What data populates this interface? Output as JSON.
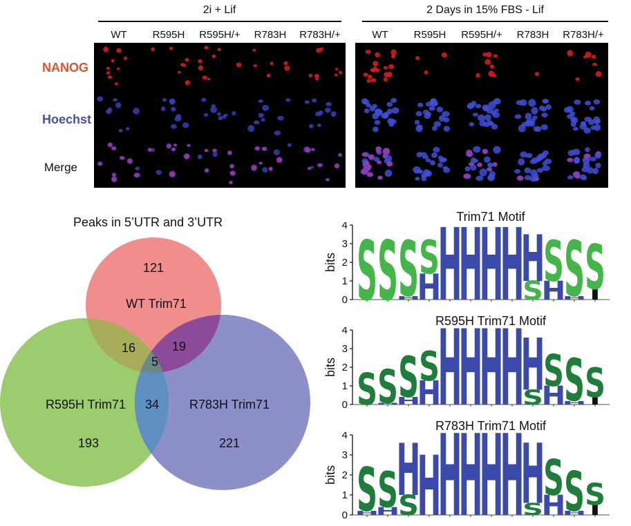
{
  "microscopy": {
    "group_left_title": "2i + Lif",
    "group_right_title": "2 Days in 15% FBS - Lif",
    "columns": [
      "WT",
      "R595H",
      "R595H/+",
      "R783H",
      "R783H/+"
    ],
    "rows": [
      {
        "label": "NANOG",
        "color": "#e0522c"
      },
      {
        "label": "Hoechst",
        "color": "#4a50a0"
      },
      {
        "label": "Merge",
        "color": "#111111"
      }
    ],
    "nanog_levels_2i": [
      0.85,
      0.8,
      0.8,
      0.85,
      0.8
    ],
    "nanog_levels_fbs": [
      0.6,
      0.1,
      0.35,
      0.05,
      0.25
    ]
  },
  "venn": {
    "title": "Peaks in 5’UTR and 3’UTR",
    "sets": [
      {
        "label": "WT Trim71",
        "color": "#f08d8d"
      },
      {
        "label": "R595H Trim71",
        "color": "#9ccc6e"
      },
      {
        "label": "R783H Trim71",
        "color": "#8d8fc9"
      }
    ],
    "counts": {
      "wt_only": "121",
      "r595h_only": "193",
      "r783h_only": "221",
      "wt_r595h": "16",
      "wt_r783h": "19",
      "r595h_r783h": "34",
      "all_three": "5"
    },
    "overlap_colors": {
      "wt_r595h": "#a7ad5a",
      "wt_r783h": "#8c4b9a",
      "r595h_r783h": "#5d8fc0",
      "all_three": "#6b8a87"
    }
  },
  "logos": [
    {
      "title": "Trim71 Motif",
      "ylabel": "bits",
      "yticks": [
        "4",
        "3",
        "2",
        "1",
        "0"
      ],
      "s_color": "#44b548",
      "h_color": "#3b4aa8",
      "i_color": "#111111"
    },
    {
      "title": "R595H Trim71 Motif",
      "ylabel": "bits",
      "yticks": [
        "4",
        "3",
        "2",
        "1",
        "0"
      ],
      "s_color": "#1e7d3a",
      "h_color": "#3b4aa8",
      "i_color": "#111111"
    },
    {
      "title": "R783H Trim71 Motif",
      "ylabel": "bits",
      "yticks": [
        "4",
        "3",
        "2",
        "1",
        "0"
      ],
      "s_color": "#1e7d3a",
      "h_color": "#3b4aa8",
      "i_color": "#111111"
    }
  ]
}
